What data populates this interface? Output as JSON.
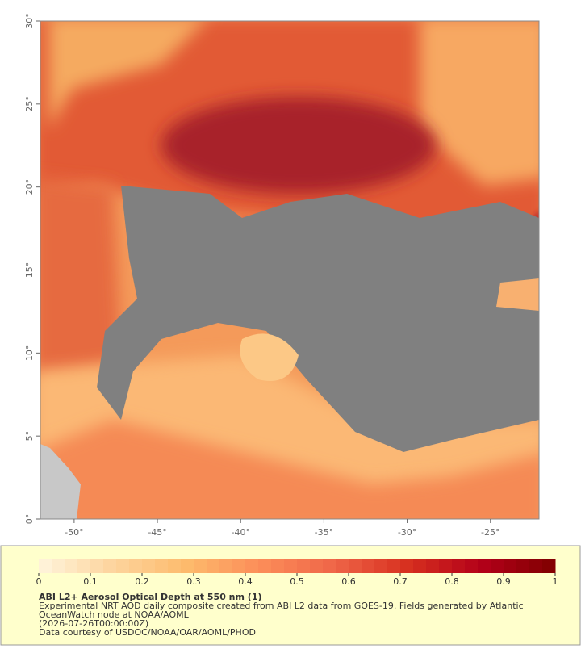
{
  "map": {
    "lonlim": [
      -52.03,
      -22.08
    ],
    "latlim": [
      0,
      30
    ],
    "lon_ticks": [
      {
        "value": -50,
        "label": "-50°"
      },
      {
        "value": -45,
        "label": "-45°"
      },
      {
        "value": -40,
        "label": "-40°"
      },
      {
        "value": -35,
        "label": "-35°"
      },
      {
        "value": -30,
        "label": "-30°"
      },
      {
        "value": -25,
        "label": "-25°"
      }
    ],
    "lat_ticks": [
      {
        "value": 0,
        "label": "0°"
      },
      {
        "value": 5,
        "label": "5°"
      },
      {
        "value": 10,
        "label": "10°"
      },
      {
        "value": 15,
        "label": "15°"
      },
      {
        "value": 20,
        "label": "20°"
      },
      {
        "value": 25,
        "label": "25°"
      },
      {
        "value": 30,
        "label": "30°"
      }
    ]
  },
  "colorbar": {
    "lim": [
      0,
      1
    ],
    "ticks": [
      0,
      0.1,
      0.2,
      0.3,
      0.4,
      0.5,
      0.6,
      0.7,
      0.8,
      0.9,
      1
    ],
    "stops": [
      "#fff5dc",
      "#fdd49e",
      "#fdbb6c",
      "#fc8d59",
      "#ef6548",
      "#d7301f",
      "#b30019",
      "#7f0000"
    ]
  },
  "caption": {
    "title": "ABI L2+ Aerosol Optical Depth at 550 nm (1)",
    "lines": [
      "Experimental NRT AOD daily composite created from ABI L2 data from GOES-19. Fields generated by Atlantic",
      "OceanWatch node at NOAA/AOML",
      "(2026-07-26T00:00:00Z)",
      "Data courtesy of USDOC/NOAA/OAR/AOML/PHOD"
    ]
  }
}
